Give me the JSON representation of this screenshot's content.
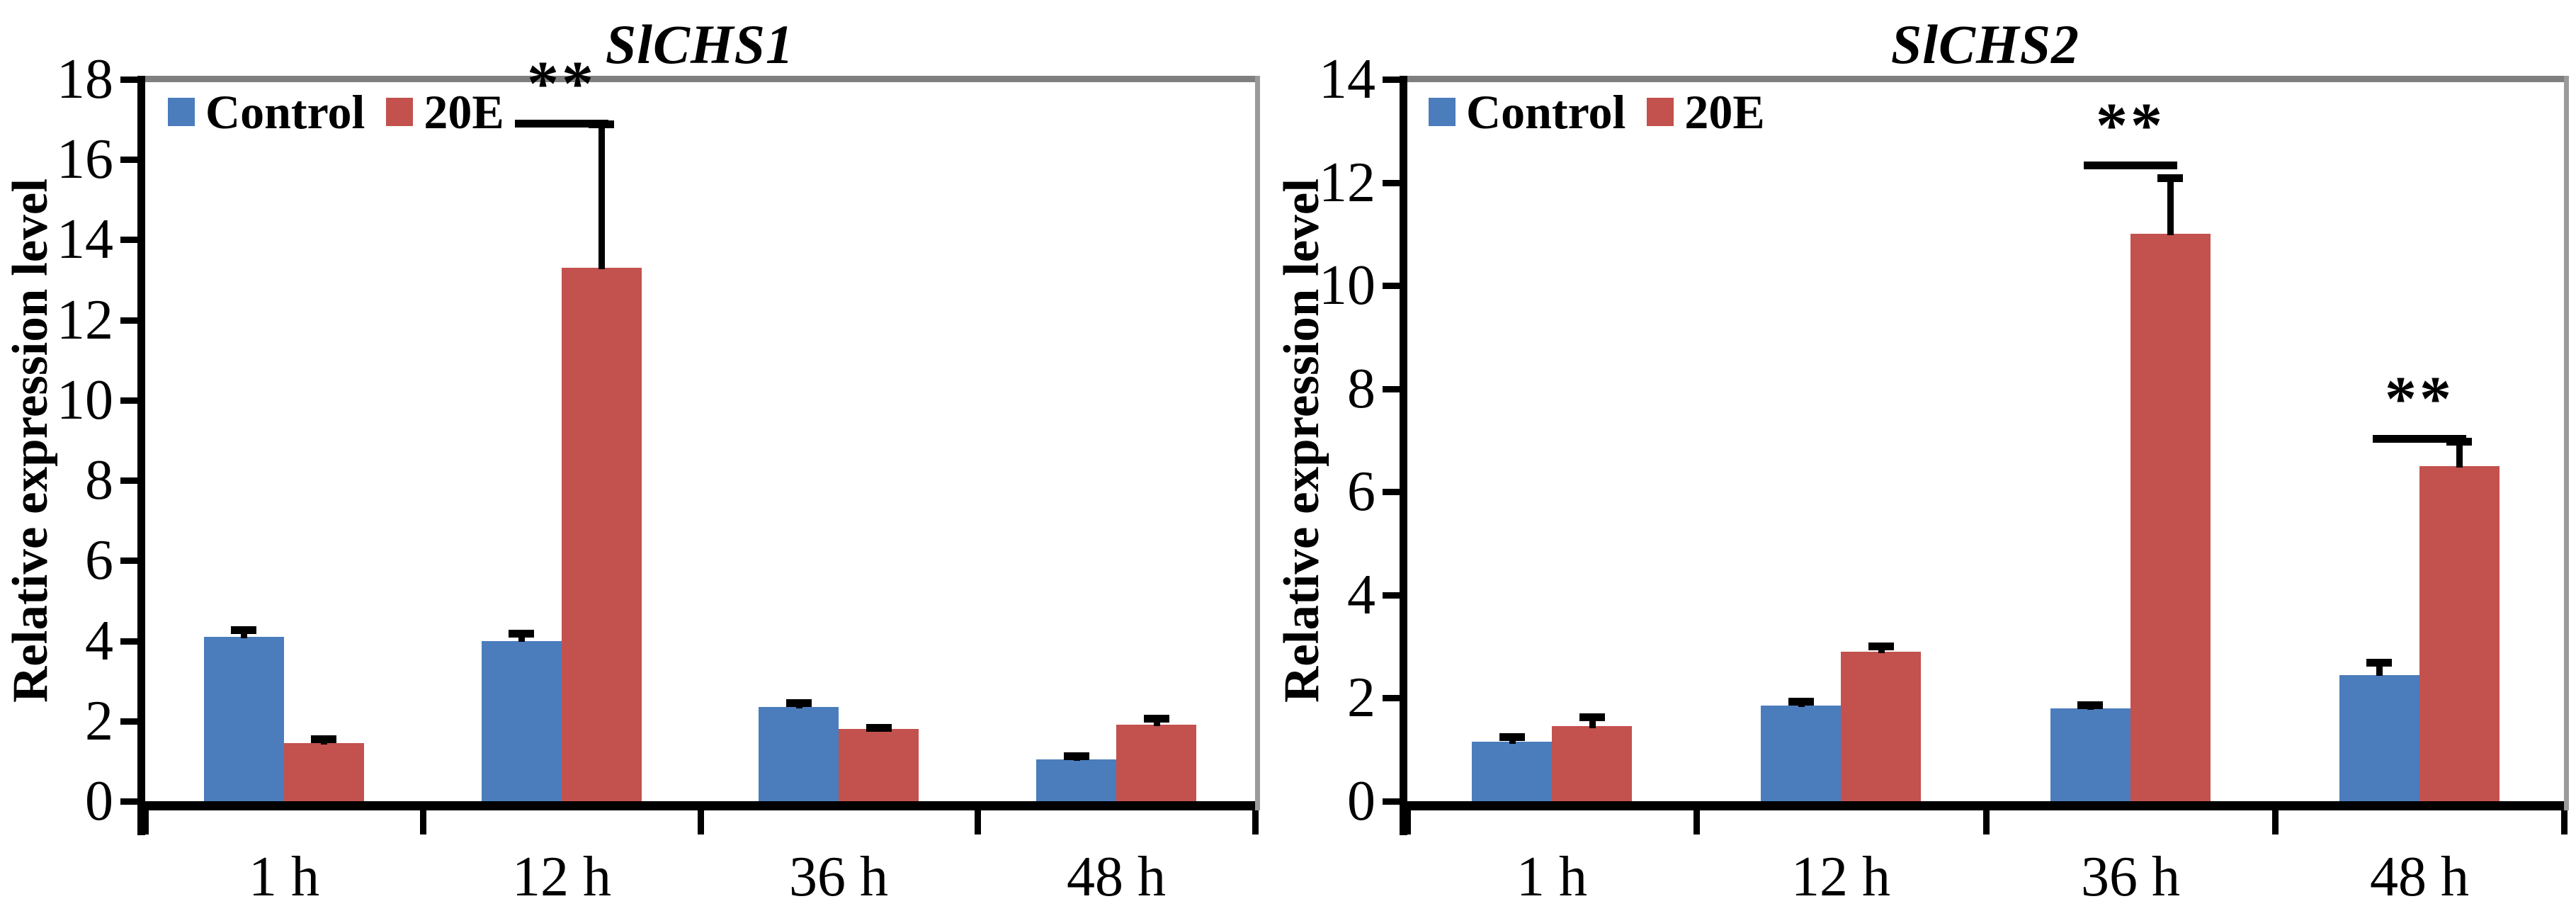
{
  "figure": {
    "background": "#ffffff",
    "text_color": "#000000",
    "axis_color": "#000000",
    "plot_top_border_color": "#7f7f7f",
    "plot_right_border_color": "#9a9a9a",
    "error_bar_color": "#000000",
    "control_color": "#4B7DBD",
    "treatment_color": "#C3514E"
  },
  "chart_data": [
    {
      "type": "bar",
      "title": "SlCHS1",
      "ylabel": "Relative expression level",
      "xlabel": "",
      "categories": [
        "1 h",
        "12 h",
        "36 h",
        "48 h"
      ],
      "ylim": [
        0,
        18
      ],
      "yticks": [
        0,
        2,
        4,
        6,
        8,
        10,
        12,
        14,
        16,
        18
      ],
      "grid": false,
      "legend_position": "top-left-inside",
      "legend": [
        "Control",
        "20E"
      ],
      "series": [
        {
          "name": "Control",
          "color": "#4B7DBD",
          "values": [
            4.1,
            4.0,
            2.35,
            1.05
          ],
          "errors_plus": [
            0.2,
            0.2,
            0.12,
            0.1
          ]
        },
        {
          "name": "20E",
          "color": "#C3514E",
          "values": [
            1.45,
            13.3,
            1.8,
            1.9
          ],
          "errors_plus": [
            0.12,
            3.6,
            0.06,
            0.18
          ]
        }
      ],
      "significance": [
        {
          "category": "12 h",
          "label": "**",
          "line_y": 17.0
        }
      ]
    },
    {
      "type": "bar",
      "title": "SlCHS2",
      "ylabel": "Relative expression level",
      "xlabel": "",
      "categories": [
        "1 h",
        "12 h",
        "36 h",
        "48 h"
      ],
      "ylim": [
        0,
        14
      ],
      "yticks": [
        0,
        2,
        4,
        6,
        8,
        10,
        12,
        14
      ],
      "grid": false,
      "legend_position": "top-left-inside",
      "legend": [
        "Control",
        "20E"
      ],
      "series": [
        {
          "name": "Control",
          "color": "#4B7DBD",
          "values": [
            1.15,
            1.85,
            1.8,
            2.45
          ],
          "errors_plus": [
            0.12,
            0.1,
            0.08,
            0.25
          ]
        },
        {
          "name": "20E",
          "color": "#C3514E",
          "values": [
            1.45,
            2.9,
            11.0,
            6.5
          ],
          "errors_plus": [
            0.2,
            0.12,
            1.1,
            0.5
          ]
        }
      ],
      "significance": [
        {
          "category": "36 h",
          "label": "**",
          "line_y": 12.4
        },
        {
          "category": "48 h",
          "label": "**",
          "line_y": 7.1
        }
      ]
    }
  ]
}
